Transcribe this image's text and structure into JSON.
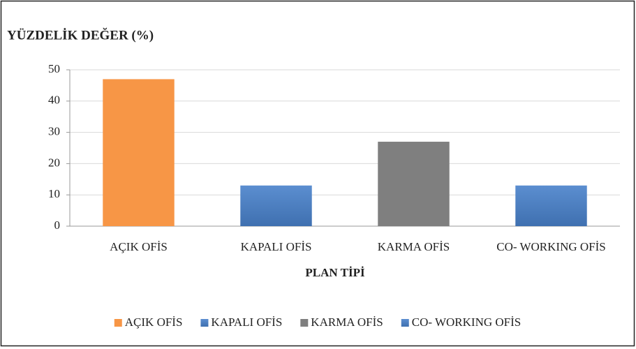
{
  "chart_data": {
    "type": "bar",
    "title": "YÜZDELİK DEĞER (%)",
    "x_label": "PLAN TİPİ",
    "categories": [
      "AÇIK OFİS",
      "KAPALI OFİS",
      "KARMA OFİS",
      "CO- WORKING OFİS"
    ],
    "values": [
      47,
      13,
      27,
      13
    ],
    "colors": [
      "#f79646",
      "#4f81bd",
      "#7f7f7f",
      "#4f81bd"
    ],
    "ylim": [
      0,
      50
    ],
    "yticks": [
      0,
      10,
      20,
      30,
      40,
      50
    ],
    "grid": true,
    "legend": "bottom"
  }
}
